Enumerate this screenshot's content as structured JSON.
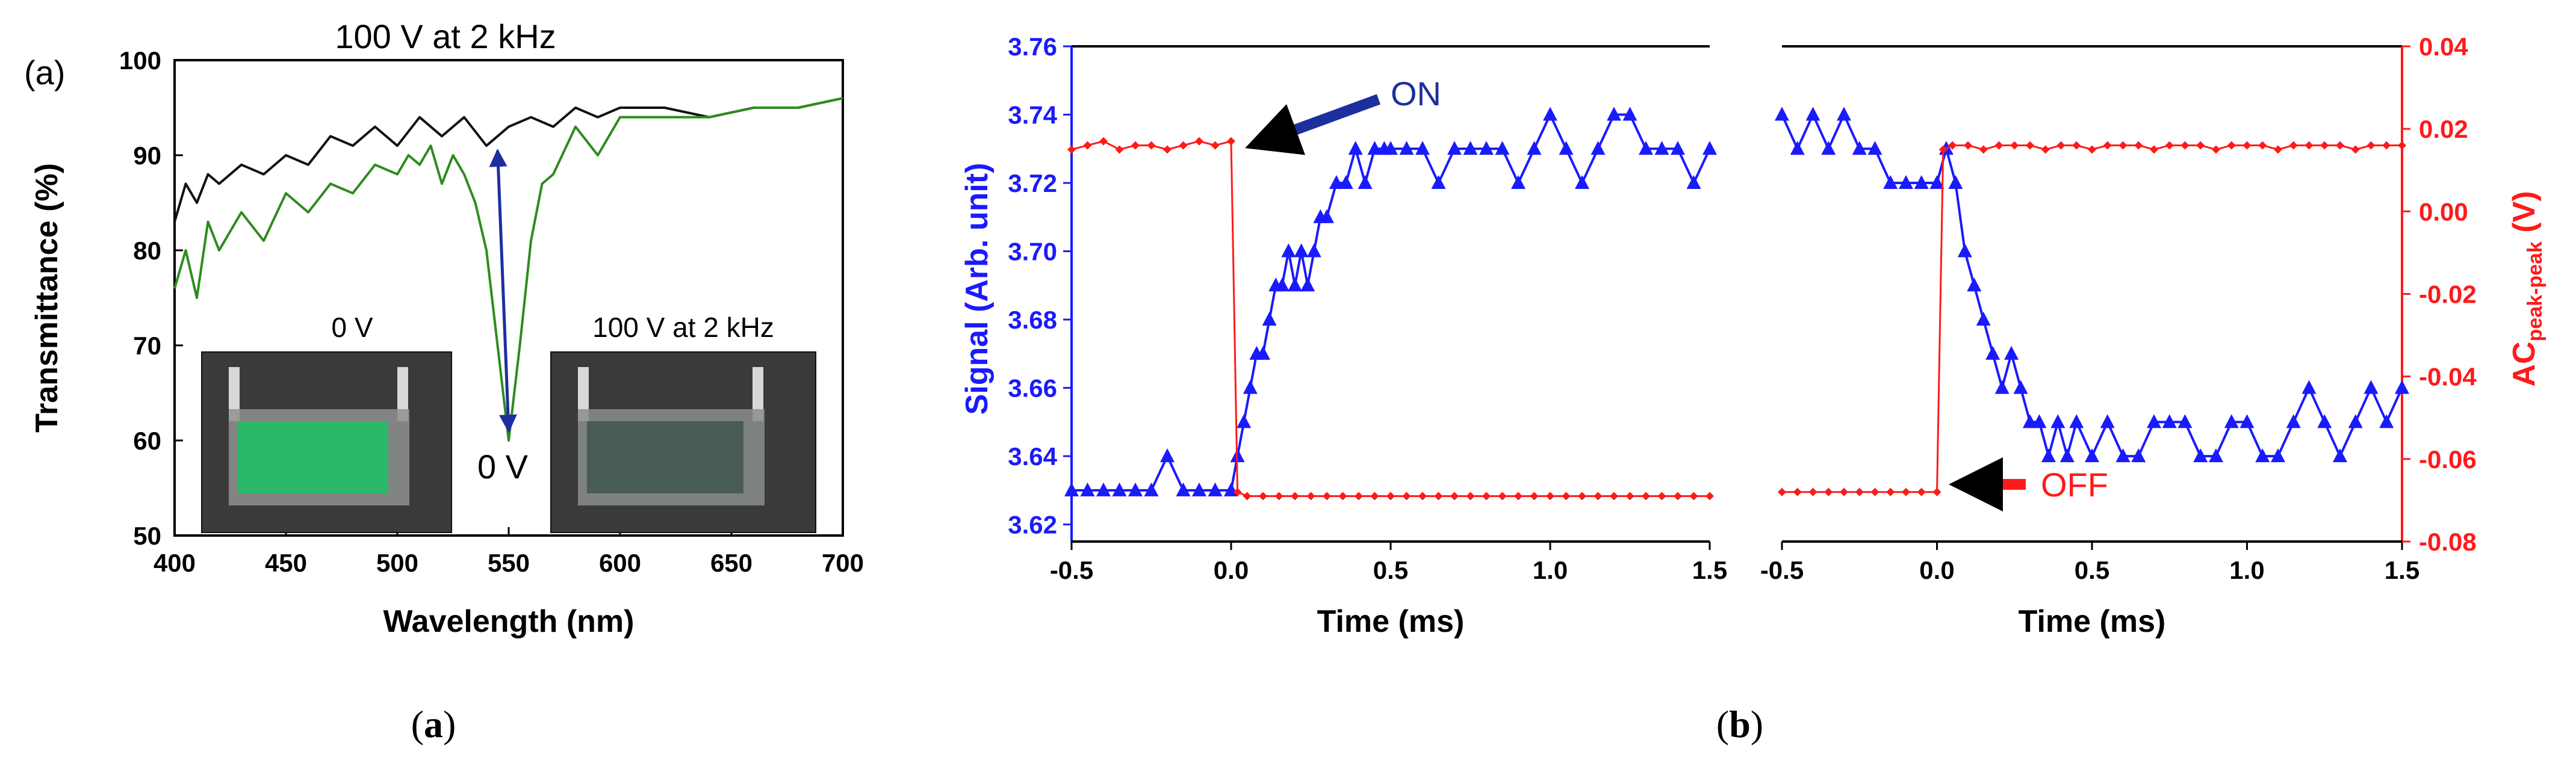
{
  "colors": {
    "black_curve": "#111111",
    "green_curve": "#2e8b1e",
    "blue_signal": "#1a1aff",
    "red_ac": "#ff1a1a",
    "arrow_navy": "#1d2f9e"
  },
  "panel_a": {
    "tag": "(a)",
    "caption": "a",
    "inset_labels": [
      "0 V",
      "100 V at 2 kHz"
    ],
    "chart_data": {
      "type": "line",
      "xlabel": "Wavelength (nm)",
      "ylabel": "Transmittance (%)",
      "xlim": [
        400,
        700
      ],
      "ylim": [
        50,
        100
      ],
      "xticks": [
        "400",
        "450",
        "500",
        "550",
        "600",
        "650",
        "700"
      ],
      "yticks": [
        "50",
        "60",
        "70",
        "80",
        "90",
        "100"
      ],
      "annotations": [
        "100 V at 2 kHz",
        "0 V"
      ],
      "series": [
        {
          "name": "100 V at 2 kHz",
          "x": [
            400,
            405,
            410,
            415,
            420,
            430,
            440,
            450,
            460,
            470,
            480,
            490,
            500,
            510,
            520,
            530,
            540,
            550,
            560,
            570,
            580,
            590,
            600,
            620,
            640,
            660,
            680,
            700
          ],
          "y": [
            83,
            87,
            85,
            88,
            87,
            89,
            88,
            90,
            89,
            92,
            91,
            93,
            91,
            94,
            92,
            94,
            91,
            93,
            94,
            93,
            95,
            94,
            95,
            95,
            94,
            95,
            95,
            96
          ]
        },
        {
          "name": "0 V",
          "x": [
            400,
            405,
            410,
            415,
            420,
            430,
            440,
            450,
            460,
            470,
            480,
            490,
            500,
            505,
            510,
            515,
            520,
            525,
            530,
            535,
            540,
            545,
            550,
            555,
            560,
            565,
            570,
            580,
            590,
            600,
            620,
            640,
            660,
            680,
            700
          ],
          "y": [
            76,
            80,
            75,
            83,
            80,
            84,
            81,
            86,
            84,
            87,
            86,
            89,
            88,
            90,
            89,
            91,
            87,
            90,
            88,
            85,
            80,
            70,
            60,
            70,
            81,
            87,
            88,
            93,
            90,
            94,
            94,
            94,
            95,
            95,
            96
          ]
        }
      ]
    }
  },
  "panel_b": {
    "caption": "b",
    "left": {
      "chart_data": {
        "type": "line",
        "xlabel": "Time (ms)",
        "ylabel": "Signal (Arb. unit)",
        "y2label": "AC",
        "y2label_sub": "peak-peak",
        "y2label_unit": " (V)",
        "xlim": [
          -0.5,
          1.5
        ],
        "ylim": [
          3.615,
          3.76
        ],
        "y2lim": [
          -0.08,
          0.04
        ],
        "xticks": [
          "-0.5",
          "0.0",
          "0.5",
          "1.0",
          "1.5"
        ],
        "yticks": [
          "3.62",
          "3.64",
          "3.66",
          "3.68",
          "3.70",
          "3.72",
          "3.74",
          "3.76"
        ],
        "annotations": [
          "ON"
        ],
        "series": [
          {
            "x": [
              -0.5,
              -0.45,
              -0.4,
              -0.35,
              -0.3,
              -0.25,
              -0.2,
              -0.15,
              -0.1,
              -0.05,
              0.0,
              0.02,
              0.04,
              0.06,
              0.08,
              0.1,
              0.12,
              0.14,
              0.16,
              0.18,
              0.2,
              0.22,
              0.24,
              0.26,
              0.28,
              0.3,
              0.33,
              0.36,
              0.39,
              0.42,
              0.45,
              0.48,
              0.5,
              0.55,
              0.6,
              0.65,
              0.7,
              0.75,
              0.8,
              0.85,
              0.9,
              0.95,
              1.0,
              1.05,
              1.1,
              1.15,
              1.2,
              1.25,
              1.3,
              1.35,
              1.4,
              1.45,
              1.5
            ],
            "y": [
              3.63,
              3.63,
              3.63,
              3.63,
              3.63,
              3.63,
              3.64,
              3.63,
              3.63,
              3.63,
              3.63,
              3.64,
              3.65,
              3.66,
              3.67,
              3.67,
              3.68,
              3.69,
              3.69,
              3.7,
              3.69,
              3.7,
              3.69,
              3.7,
              3.71,
              3.71,
              3.72,
              3.72,
              3.73,
              3.72,
              3.73,
              3.73,
              3.73,
              3.73,
              3.73,
              3.72,
              3.73,
              3.73,
              3.73,
              3.73,
              3.72,
              3.73,
              3.74,
              3.73,
              3.72,
              3.73,
              3.74,
              3.74,
              3.73,
              3.73,
              3.73,
              3.72,
              3.73
            ]
          },
          {
            "x": [
              -0.5,
              -0.45,
              -0.4,
              -0.35,
              -0.3,
              -0.25,
              -0.2,
              -0.15,
              -0.1,
              -0.05,
              0.0,
              0.02,
              0.05,
              0.1,
              0.15,
              0.2,
              0.25,
              0.3,
              0.35,
              0.4,
              0.45,
              0.5,
              0.55,
              0.6,
              0.65,
              0.7,
              0.75,
              0.8,
              0.85,
              0.9,
              0.95,
              1.0,
              1.05,
              1.1,
              1.15,
              1.2,
              1.25,
              1.3,
              1.35,
              1.4,
              1.45,
              1.5
            ],
            "y": [
              0.015,
              0.016,
              0.017,
              0.015,
              0.016,
              0.016,
              0.015,
              0.016,
              0.017,
              0.016,
              0.017,
              -0.068,
              -0.069,
              -0.069,
              -0.069,
              -0.069,
              -0.069,
              -0.069,
              -0.069,
              -0.069,
              -0.069,
              -0.069,
              -0.069,
              -0.069,
              -0.069,
              -0.069,
              -0.069,
              -0.069,
              -0.069,
              -0.069,
              -0.069,
              -0.069,
              -0.069,
              -0.069,
              -0.069,
              -0.069,
              -0.069,
              -0.069,
              -0.069,
              -0.069,
              -0.069,
              -0.069
            ]
          }
        ]
      }
    },
    "right": {
      "chart_data": {
        "type": "line",
        "xlabel": "Time (ms)",
        "ylabel": "",
        "y2label": "AC",
        "y2label_sub": "peak-peak",
        "y2label_unit": " (V)",
        "xlim": [
          -0.5,
          1.5
        ],
        "ylim": [
          3.615,
          3.76
        ],
        "y2lim": [
          -0.08,
          0.04
        ],
        "xticks": [
          "-0.5",
          "0.0",
          "0.5",
          "1.0",
          "1.5"
        ],
        "y2ticks": [
          "-0.08",
          "-0.06",
          "-0.04",
          "-0.02",
          "0.00",
          "0.02",
          "0.04"
        ],
        "annotations": [
          "OFF"
        ],
        "series": [
          {
            "x": [
              -0.5,
              -0.45,
              -0.4,
              -0.35,
              -0.3,
              -0.25,
              -0.2,
              -0.15,
              -0.1,
              -0.05,
              0.0,
              0.03,
              0.06,
              0.09,
              0.12,
              0.15,
              0.18,
              0.21,
              0.24,
              0.27,
              0.3,
              0.33,
              0.36,
              0.39,
              0.42,
              0.45,
              0.5,
              0.55,
              0.6,
              0.65,
              0.7,
              0.75,
              0.8,
              0.85,
              0.9,
              0.95,
              1.0,
              1.05,
              1.1,
              1.15,
              1.2,
              1.25,
              1.3,
              1.35,
              1.4,
              1.45,
              1.5
            ],
            "y": [
              3.74,
              3.73,
              3.74,
              3.73,
              3.74,
              3.73,
              3.73,
              3.72,
              3.72,
              3.72,
              3.72,
              3.73,
              3.72,
              3.7,
              3.69,
              3.68,
              3.67,
              3.66,
              3.67,
              3.66,
              3.65,
              3.65,
              3.64,
              3.65,
              3.64,
              3.65,
              3.64,
              3.65,
              3.64,
              3.64,
              3.65,
              3.65,
              3.65,
              3.64,
              3.64,
              3.65,
              3.65,
              3.64,
              3.64,
              3.65,
              3.66,
              3.65,
              3.64,
              3.65,
              3.66,
              3.65,
              3.66
            ]
          },
          {
            "x": [
              -0.5,
              -0.45,
              -0.4,
              -0.35,
              -0.3,
              -0.25,
              -0.2,
              -0.15,
              -0.1,
              -0.05,
              0.0,
              0.02,
              0.05,
              0.1,
              0.15,
              0.2,
              0.25,
              0.3,
              0.35,
              0.4,
              0.45,
              0.5,
              0.55,
              0.6,
              0.65,
              0.7,
              0.75,
              0.8,
              0.85,
              0.9,
              0.95,
              1.0,
              1.05,
              1.1,
              1.15,
              1.2,
              1.25,
              1.3,
              1.35,
              1.4,
              1.45,
              1.5
            ],
            "y": [
              -0.068,
              -0.068,
              -0.068,
              -0.068,
              -0.068,
              -0.068,
              -0.068,
              -0.068,
              -0.068,
              -0.068,
              -0.068,
              0.015,
              0.016,
              0.016,
              0.015,
              0.016,
              0.016,
              0.016,
              0.015,
              0.016,
              0.016,
              0.015,
              0.016,
              0.016,
              0.016,
              0.015,
              0.016,
              0.016,
              0.016,
              0.015,
              0.016,
              0.016,
              0.016,
              0.015,
              0.016,
              0.016,
              0.016,
              0.016,
              0.015,
              0.016,
              0.016,
              0.016
            ]
          }
        ]
      }
    }
  }
}
